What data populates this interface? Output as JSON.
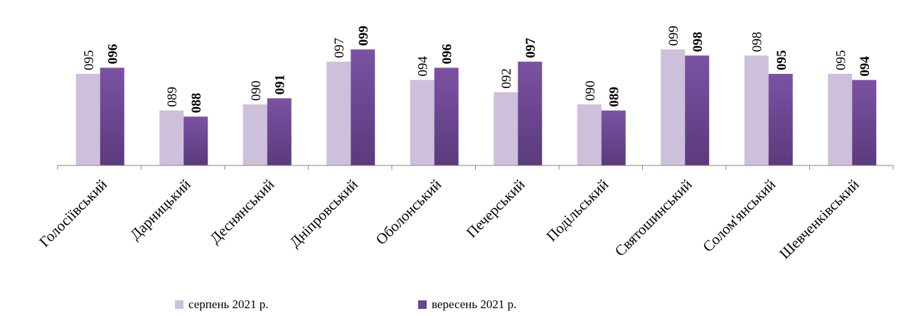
{
  "chart_data": {
    "type": "bar",
    "categories": [
      "Голосіївський",
      "Дарницький",
      "Деснянський",
      "Дніпровський",
      "Оболонський",
      "Печерський",
      "Подільський",
      "Святошинський",
      "Солом'янський",
      "Шевченківський"
    ],
    "series": [
      {
        "name": "серпень 2021 р.",
        "values": [
          95,
          89,
          90,
          97,
          94,
          92,
          90,
          99,
          98,
          95
        ],
        "labels": [
          "095",
          "089",
          "090",
          "097",
          "094",
          "092",
          "090",
          "099",
          "098",
          "095"
        ],
        "color": "#ccc0da",
        "label_bold": false
      },
      {
        "name": "вересень 2021 р.",
        "values": [
          96,
          88,
          91,
          99,
          96,
          97,
          89,
          98,
          95,
          94
        ],
        "labels": [
          "096",
          "088",
          "091",
          "099",
          "096",
          "097",
          "089",
          "098",
          "095",
          "094"
        ],
        "color": "#6b4591",
        "label_bold": true
      }
    ],
    "ylim": [
      80,
      100
    ],
    "grid": false,
    "legend_position": "bottom",
    "title": "",
    "xlabel": "",
    "ylabel": ""
  }
}
